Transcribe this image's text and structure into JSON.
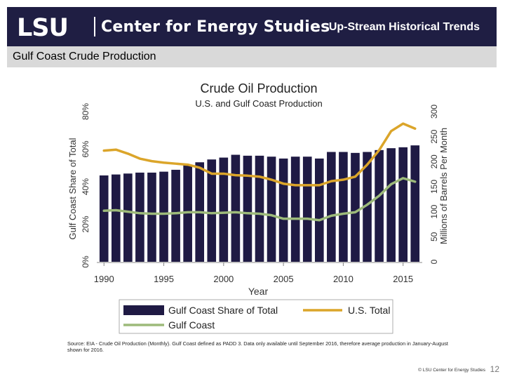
{
  "header": {
    "logo_text": "LSU",
    "center_name": "Center for Energy Studies",
    "title": "Up-Stream Historical Trends"
  },
  "subhead": {
    "title": "Gulf Coast Crude Production"
  },
  "chart_data": {
    "type": "bar+line",
    "title": "Crude Oil Production",
    "subtitle": "U.S. and Gulf Coast Production",
    "xlabel": "Year",
    "ylabel_left": "Gulf Coast Share of Total",
    "ylabel_right": "Millions of Barrels Per Month",
    "ylim_left": [
      0,
      80
    ],
    "ylim_right": [
      0,
      300
    ],
    "x_ticks": [
      1990,
      1995,
      2000,
      2005,
      2010,
      2015
    ],
    "y_ticks_left": [
      "0%",
      "20%",
      "40%",
      "60%",
      "80%"
    ],
    "y_ticks_right": [
      "0",
      "50",
      "100",
      "150",
      "200",
      "250",
      "300"
    ],
    "years": [
      1990,
      1991,
      1992,
      1993,
      1994,
      1995,
      1996,
      1997,
      1998,
      1999,
      2000,
      2001,
      2002,
      2003,
      2004,
      2005,
      2006,
      2007,
      2008,
      2009,
      2010,
      2011,
      2012,
      2013,
      2014,
      2015,
      2016
    ],
    "series": [
      {
        "name": "Gulf Coast Share of Total",
        "type": "bar",
        "axis": "left",
        "color": "#1f1a44",
        "values": [
          46,
          46.5,
          47,
          47.5,
          47.5,
          48,
          49,
          51.5,
          53,
          54.5,
          55.5,
          57,
          56.5,
          56.5,
          56,
          55,
          56,
          56,
          55,
          58.5,
          58.5,
          58,
          58.5,
          59.5,
          60.5,
          61,
          62
        ]
      },
      {
        "name": "U.S. Total",
        "type": "line",
        "axis": "right",
        "color": "#dba52a",
        "values": [
          222,
          224,
          216,
          206,
          201,
          198,
          196,
          194,
          188,
          176,
          176,
          173,
          172,
          170,
          164,
          156,
          153,
          153,
          153,
          161,
          164,
          170,
          194,
          223,
          261,
          276,
          266
        ]
      },
      {
        "name": "Gulf Coast",
        "type": "line",
        "axis": "right",
        "color": "#9dba7a",
        "values": [
          102,
          103,
          100,
          97,
          96,
          96,
          97,
          99,
          99,
          97,
          98,
          99,
          97,
          96,
          93,
          86,
          86,
          86,
          83,
          92,
          96,
          99,
          114,
          132,
          155,
          167,
          160
        ]
      }
    ],
    "legend": [
      "Gulf Coast Share of Total",
      "U.S. Total",
      "Gulf Coast"
    ],
    "legend_placement": "bottom"
  },
  "source_note": "Source: EIA - Crude Oil Production (Monthly). Gulf Coast defined as PADD 3. Data only available until September 2016, therefore average production in January-August shown for 2016.",
  "footer": {
    "credit": "© LSU Center for Energy Studies",
    "page": "12"
  }
}
